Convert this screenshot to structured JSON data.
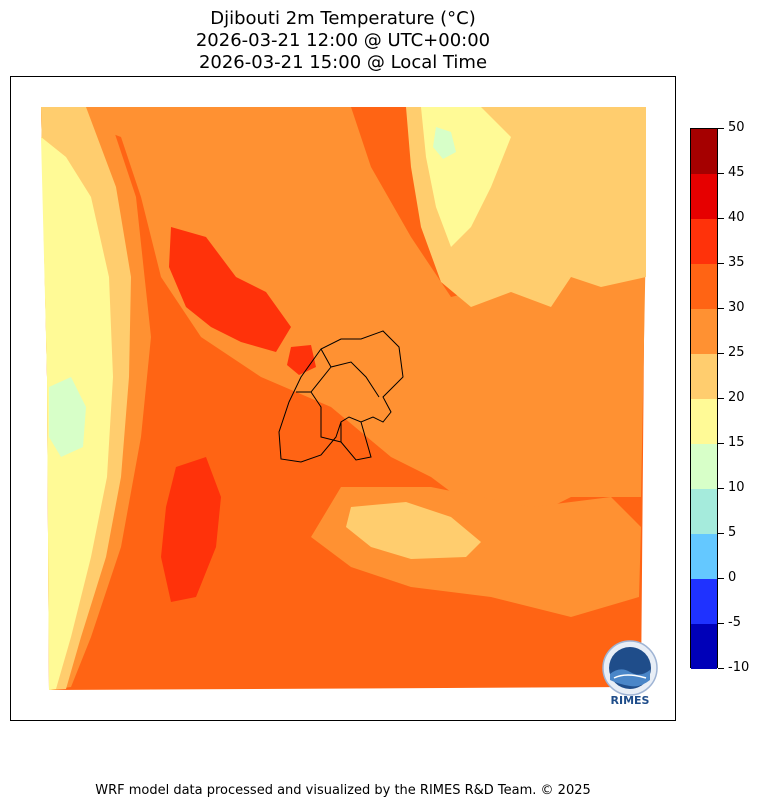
{
  "title": {
    "line1": "Djibouti 2m Temperature (°C)",
    "line2": "2026-03-21 12:00 @ UTC+00:00",
    "line3": "2026-03-21 15:00 @ Local Time"
  },
  "colorbar": {
    "levels": [
      -10,
      -5,
      0,
      5,
      10,
      15,
      20,
      25,
      30,
      35,
      40,
      45,
      50
    ],
    "labels": [
      "-10",
      "-5",
      "0",
      "5",
      "10",
      "15",
      "20",
      "25",
      "30",
      "35",
      "40",
      "45",
      "50"
    ],
    "colors": [
      "#0000b8",
      "#1f32ff",
      "#64c8ff",
      "#a5ebdc",
      "#d7ffc8",
      "#fffa96",
      "#ffcd6e",
      "#ff9132",
      "#ff6414",
      "#ff320a",
      "#e60000",
      "#a50000"
    ]
  },
  "logo": {
    "text": "RIMES"
  },
  "footer": {
    "text": "WRF model data processed and visualized by the RIMES R&D Team. © 2025"
  }
}
